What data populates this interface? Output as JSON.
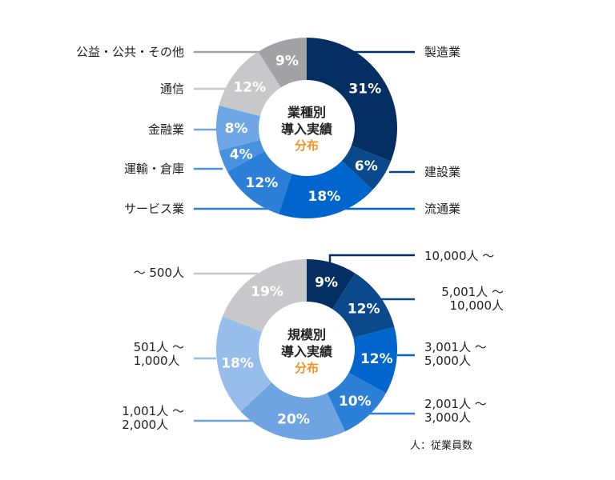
{
  "chart_data": [
    {
      "type": "pie",
      "donut": true,
      "title_lines": [
        "業種別",
        "導入実績"
      ],
      "subtitle": "分布",
      "subtitle_color": "#f39325",
      "direction": "clockwise from top",
      "categories": [
        "製造業",
        "建設業",
        "流通業",
        "サービス業",
        "運輸・倉庫",
        "金融業",
        "通信",
        "公益・公共・その他"
      ],
      "values": [
        31,
        6,
        18,
        12,
        4,
        8,
        12,
        9
      ],
      "data_labels": [
        "31%",
        "6%",
        "18%",
        "12%",
        "4%",
        "8%",
        "12%",
        "9%"
      ],
      "colors": [
        "#052f62",
        "#0a4a8c",
        "#0065cc",
        "#2c7fd6",
        "#4a92e0",
        "#6fa6e6",
        "#c8c8ca",
        "#a2a2a4"
      ]
    },
    {
      "type": "pie",
      "donut": true,
      "title_lines": [
        "規模別",
        "導入実績"
      ],
      "subtitle": "分布",
      "subtitle_color": "#f39325",
      "direction": "clockwise from top",
      "categories": [
        "10,000人 〜",
        "5,001人 〜\n10,000人",
        "3,001人 〜\n5,000人",
        "2,001人 〜\n3,000人",
        "1,001人 〜\n2,000人",
        "501人 〜\n1,000人",
        "〜 500人"
      ],
      "values": [
        9,
        12,
        12,
        10,
        20,
        18,
        19
      ],
      "data_labels": [
        "9%",
        "12%",
        "12%",
        "10%",
        "20%",
        "18%",
        "19%"
      ],
      "colors": [
        "#052f62",
        "#0a4a8c",
        "#0065cc",
        "#2c7fd6",
        "#6ea4e2",
        "#97bdea",
        "#c8c8ca"
      ],
      "note": "人：従業員数"
    }
  ]
}
